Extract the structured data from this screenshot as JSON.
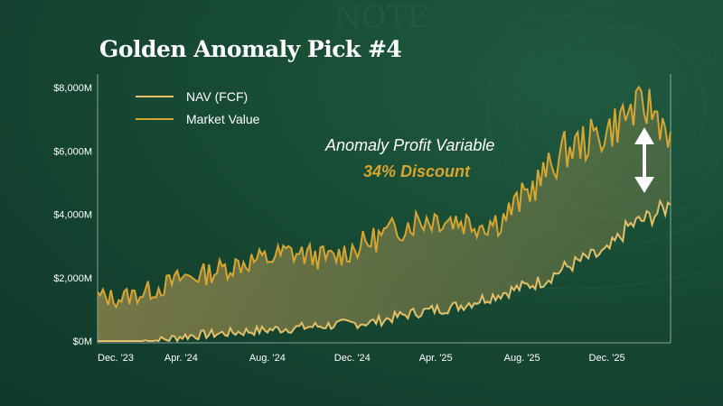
{
  "header": {
    "title": "Golden Anomaly Pick #4"
  },
  "colors": {
    "nav": "#e3bf6a",
    "market": "#d9a531",
    "accent": "#d9a531",
    "background": "#174a34",
    "arrow": "#ffffff"
  },
  "annotation": {
    "line1": "Anomaly Profit Variable",
    "line2": "34% Discount"
  },
  "chart_data": {
    "type": "line",
    "title": "Golden Anomaly Pick #4",
    "xlabel": "",
    "ylabel": "",
    "ylim": [
      0,
      8500
    ],
    "y_ticks": [
      0,
      2000,
      4000,
      6000,
      8000
    ],
    "y_tick_labels": [
      "$0M",
      "$2,000M",
      "$4,000M",
      "$6,000M",
      "$8,000M"
    ],
    "x_tick_labels": [
      "Dec. '23",
      "Apr. '24",
      "Aug. '24",
      "Dec. '24",
      "Apr. '25",
      "Aug. '25",
      "Dec. '25"
    ],
    "x_range": [
      "2023-12",
      "2026-03"
    ],
    "x": [
      "2023-12",
      "2024-01",
      "2024-02",
      "2024-03",
      "2024-04",
      "2024-05",
      "2024-06",
      "2024-07",
      "2024-08",
      "2024-09",
      "2024-10",
      "2024-11",
      "2024-12",
      "2025-01",
      "2025-02",
      "2025-03",
      "2025-04",
      "2025-05",
      "2025-06",
      "2025-07",
      "2025-08",
      "2025-09",
      "2025-10",
      "2025-11",
      "2025-12",
      "2026-01",
      "2026-02",
      "2026-03"
    ],
    "legend_position": "top-left",
    "grid": false,
    "series": [
      {
        "name": "NAV (FCF)",
        "values": [
          0,
          0,
          0,
          20,
          150,
          200,
          250,
          300,
          350,
          400,
          450,
          500,
          550,
          600,
          750,
          900,
          1000,
          1100,
          1300,
          1500,
          1700,
          1900,
          2300,
          2600,
          2800,
          3600,
          3900,
          4300
        ]
      },
      {
        "name": "Market Value",
        "values": [
          1400,
          1350,
          1500,
          1700,
          2000,
          2100,
          2300,
          2500,
          2600,
          2800,
          2700,
          2600,
          2900,
          3200,
          3500,
          3800,
          3900,
          3800,
          3700,
          3800,
          4500,
          5200,
          6000,
          6300,
          6600,
          7200,
          7400,
          6600
        ]
      }
    ],
    "annotation": {
      "text": "Anomaly Profit Variable",
      "value_text": "34% Discount"
    }
  }
}
